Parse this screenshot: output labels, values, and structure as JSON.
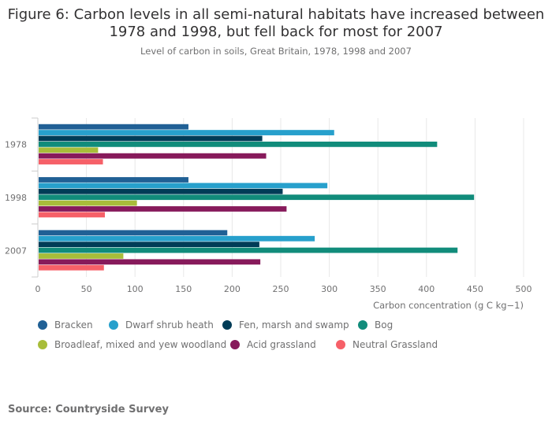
{
  "title": "Figure 6: Carbon levels in all semi-natural habitats have increased between 1978 and 1998, but fell back for most for 2007",
  "subtitle": "Level of carbon in soils, Great Britain, 1978, 1998 and 2007",
  "source": "Source: Countryside Survey",
  "chart_data": {
    "type": "bar",
    "orientation": "horizontal",
    "categories": [
      "1978",
      "1998",
      "2007"
    ],
    "xlabel": "Carbon concentration (g C kg−1)",
    "xlim": [
      0,
      500
    ],
    "xticks": [
      0,
      50,
      100,
      150,
      200,
      250,
      300,
      350,
      400,
      450,
      500
    ],
    "grid": true,
    "legend_position": "bottom",
    "series": [
      {
        "name": "Bracken",
        "color": "#206095",
        "values": [
          155,
          155,
          195
        ]
      },
      {
        "name": "Dwarf shrub heath",
        "color": "#27a0cc",
        "values": [
          305,
          298,
          285
        ]
      },
      {
        "name": "Fen, marsh and swamp",
        "color": "#003c57",
        "values": [
          231,
          252,
          228
        ]
      },
      {
        "name": "Bog",
        "color": "#118c7b",
        "values": [
          411,
          449,
          432
        ]
      },
      {
        "name": "Broadleaf, mixed and yew woodland",
        "color": "#a8bd3a",
        "values": [
          62,
          102,
          88
        ]
      },
      {
        "name": "Acid grassland",
        "color": "#871a5b",
        "values": [
          235,
          256,
          229
        ]
      },
      {
        "name": "Neutral Grassland",
        "color": "#f66068",
        "values": [
          67,
          69,
          68
        ]
      }
    ]
  }
}
